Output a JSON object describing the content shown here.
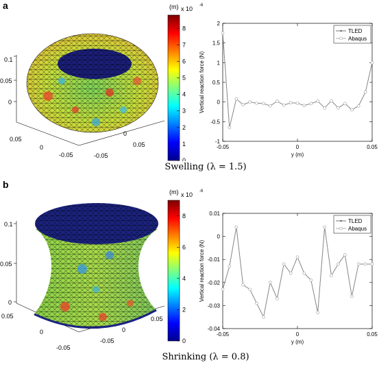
{
  "panel_a": {
    "letter": "a",
    "caption": "Swelling (λ = 1.5)",
    "surface": {
      "axis_ticks_z": [
        "0.1",
        "0.05",
        "0"
      ],
      "axis_ticks_left": [
        "0.05",
        "0",
        "-0.05"
      ],
      "axis_ticks_right": [
        "0.05",
        "0",
        "-0.05"
      ]
    },
    "colorbar": {
      "unit": "(m)",
      "scale": "x 10",
      "exponent": "-6",
      "ticks": [
        "8",
        "7",
        "6",
        "5",
        "4",
        "3",
        "2",
        "1",
        "0"
      ],
      "range": [
        0,
        8.8
      ]
    }
  },
  "panel_b": {
    "letter": "b",
    "caption": "Shrinking (λ = 0.8)",
    "surface": {
      "axis_ticks_z": [
        "0.1",
        "0.05",
        "0"
      ],
      "axis_ticks_left": [
        "0.05",
        "0",
        "-0.05"
      ],
      "axis_ticks_right": [
        "0.05",
        "0",
        "-0.05"
      ]
    },
    "colorbar": {
      "unit": "(m)",
      "scale": "x 10",
      "exponent": "-6",
      "ticks": [
        "8",
        "6",
        "4",
        "2",
        "0"
      ],
      "range": [
        0,
        9
      ]
    }
  },
  "chart_data": [
    {
      "type": "line",
      "xlabel": "y (m)",
      "ylabel": "Vertical reaction force (N)",
      "xlim": [
        -0.05,
        0.05
      ],
      "ylim": [
        -1,
        2
      ],
      "xticks": [
        "-0.05",
        "0",
        "0.05"
      ],
      "yticks": [
        "2",
        "1.5",
        "1",
        "0.5",
        "0",
        "-0.5",
        "-1"
      ],
      "legend_position": "top-right",
      "colors": {
        "TLED": "#555555",
        "Abaqus": "#999999"
      },
      "x": [
        -0.05,
        -0.0455,
        -0.0409,
        -0.0364,
        -0.0318,
        -0.0273,
        -0.0227,
        -0.0182,
        -0.0136,
        -0.0091,
        -0.0045,
        0,
        0.0045,
        0.0091,
        0.0136,
        0.0182,
        0.0227,
        0.0273,
        0.0318,
        0.0364,
        0.0409,
        0.0455,
        0.05
      ],
      "series": [
        {
          "name": "TLED",
          "values": [
            1.75,
            -0.65,
            0.08,
            -0.07,
            0.0,
            -0.03,
            -0.04,
            -0.1,
            0.02,
            -0.08,
            -0.02,
            -0.03,
            -0.09,
            -0.04,
            0.02,
            -0.15,
            0.03,
            -0.15,
            -0.04,
            -0.2,
            -0.1,
            0.25,
            1.0
          ]
        },
        {
          "name": "Abaqus",
          "values": [
            1.75,
            -0.65,
            0.08,
            -0.07,
            0.0,
            -0.03,
            -0.04,
            -0.1,
            0.02,
            -0.08,
            -0.02,
            -0.03,
            -0.09,
            -0.04,
            0.02,
            -0.15,
            0.03,
            -0.15,
            -0.04,
            -0.2,
            -0.1,
            0.25,
            1.0
          ]
        }
      ]
    },
    {
      "type": "line",
      "xlabel": "y (m)",
      "ylabel": "Vertical reaction force (N)",
      "xlim": [
        -0.05,
        0.05
      ],
      "ylim": [
        -0.04,
        0.01
      ],
      "xticks": [
        "-0.05",
        "0",
        "0.05"
      ],
      "yticks": [
        "0.01",
        "0",
        "-0.01",
        "-0.02",
        "-0.03",
        "-0.04"
      ],
      "legend_position": "top-right",
      "colors": {
        "TLED": "#555555",
        "Abaqus": "#999999"
      },
      "x": [
        -0.05,
        -0.0455,
        -0.0409,
        -0.0364,
        -0.0318,
        -0.0273,
        -0.0227,
        -0.0182,
        -0.0136,
        -0.0091,
        -0.0045,
        0,
        0.0045,
        0.0091,
        0.0136,
        0.0182,
        0.0227,
        0.0273,
        0.0318,
        0.0364,
        0.0409,
        0.0455,
        0.05
      ],
      "series": [
        {
          "name": "TLED",
          "values": [
            -0.023,
            -0.013,
            0.004,
            -0.021,
            -0.023,
            -0.029,
            -0.035,
            -0.02,
            -0.027,
            -0.012,
            -0.016,
            -0.009,
            -0.016,
            -0.019,
            -0.033,
            0.004,
            -0.017,
            -0.012,
            -0.008,
            -0.026,
            -0.012,
            -0.012,
            -0.012
          ]
        },
        {
          "name": "Abaqus",
          "values": [
            -0.023,
            -0.013,
            0.004,
            -0.021,
            -0.023,
            -0.029,
            -0.035,
            -0.02,
            -0.027,
            -0.012,
            -0.016,
            -0.009,
            -0.016,
            -0.019,
            -0.033,
            0.004,
            -0.017,
            -0.012,
            -0.008,
            -0.026,
            -0.012,
            -0.012,
            -0.012
          ]
        }
      ]
    }
  ]
}
